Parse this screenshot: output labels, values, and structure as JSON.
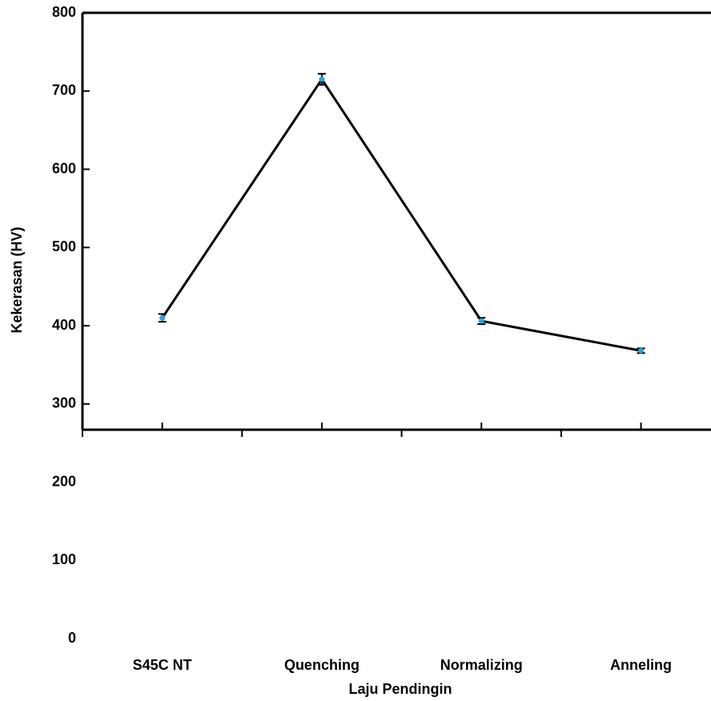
{
  "chart_data": {
    "type": "line",
    "x_label": "Laju Pendingin",
    "y_label": "Kekerasan (HV)",
    "categories": [
      "S45C NT",
      "Quenching",
      "Normalizing",
      "Anneling"
    ],
    "values": [
      410,
      715,
      406,
      368
    ],
    "errors": [
      5,
      7,
      4,
      3
    ],
    "color": "#000000",
    "marker_color": "#29a3dd",
    "ylim": [
      0,
      800
    ],
    "yticks": [
      0,
      100,
      200,
      300,
      400,
      500,
      600,
      700,
      800
    ]
  }
}
